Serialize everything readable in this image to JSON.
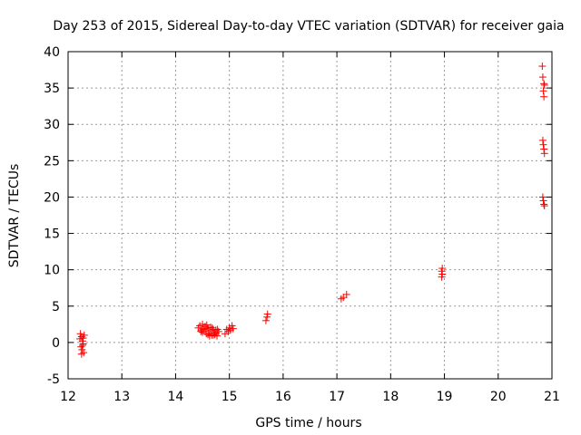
{
  "chart_data": {
    "type": "scatter",
    "title": "Day 253 of 2015, Sidereal Day-to-day VTEC variation (SDTVAR) for receiver gaia",
    "xlabel": "GPS time / hours",
    "ylabel": "SDTVAR / TECUs",
    "xlim": [
      12,
      21
    ],
    "ylim": [
      -5,
      40
    ],
    "x_ticks": [
      12,
      13,
      14,
      15,
      16,
      17,
      18,
      19,
      20,
      21
    ],
    "y_ticks": [
      -5,
      0,
      5,
      10,
      15,
      20,
      25,
      30,
      35,
      40
    ],
    "x_tick_labels": [
      "12",
      "13",
      "14",
      "15",
      "16",
      "17",
      "18",
      "19",
      "20",
      "21"
    ],
    "y_tick_labels": [
      "-5",
      "0",
      "5",
      "10",
      "15",
      "20",
      "25",
      "30",
      "35",
      "40"
    ],
    "grid": true,
    "marker": "+",
    "color": "#ff0000",
    "series": [
      {
        "name": "SDTVAR",
        "points": [
          [
            12.23,
            1.2
          ],
          [
            12.25,
            0.8
          ],
          [
            12.27,
            0.2
          ],
          [
            12.28,
            -0.2
          ],
          [
            12.24,
            -0.6
          ],
          [
            12.26,
            -1.0
          ],
          [
            12.29,
            -1.4
          ],
          [
            12.22,
            0.5
          ],
          [
            12.3,
            1.0
          ],
          [
            12.25,
            -1.6
          ],
          [
            12.27,
            -0.4
          ],
          [
            12.28,
            0.6
          ],
          [
            14.42,
            2.0
          ],
          [
            14.45,
            2.3
          ],
          [
            14.47,
            1.5
          ],
          [
            14.5,
            2.5
          ],
          [
            14.52,
            1.8
          ],
          [
            14.55,
            2.2
          ],
          [
            14.57,
            1.2
          ],
          [
            14.6,
            2.0
          ],
          [
            14.62,
            1.6
          ],
          [
            14.65,
            2.1
          ],
          [
            14.67,
            1.0
          ],
          [
            14.7,
            1.8
          ],
          [
            14.72,
            1.3
          ],
          [
            14.75,
            1.7
          ],
          [
            14.77,
            0.9
          ],
          [
            14.8,
            1.5
          ],
          [
            14.5,
            1.4
          ],
          [
            14.55,
            1.9
          ],
          [
            14.6,
            1.1
          ],
          [
            14.65,
            1.6
          ],
          [
            14.7,
            1.0
          ],
          [
            14.75,
            1.3
          ],
          [
            14.78,
            1.8
          ],
          [
            14.58,
            2.4
          ],
          [
            14.63,
            0.9
          ],
          [
            14.68,
            2.0
          ],
          [
            14.73,
            1.1
          ],
          [
            14.48,
            1.7
          ],
          [
            14.92,
            1.2
          ],
          [
            14.95,
            1.8
          ],
          [
            14.98,
            1.5
          ],
          [
            15.0,
            2.0
          ],
          [
            15.02,
            1.7
          ],
          [
            15.05,
            2.3
          ],
          [
            15.07,
            1.9
          ],
          [
            15.68,
            3.0
          ],
          [
            15.7,
            3.5
          ],
          [
            15.71,
            3.9
          ],
          [
            17.08,
            6.0
          ],
          [
            17.12,
            6.2
          ],
          [
            17.18,
            6.6
          ],
          [
            18.95,
            9.0
          ],
          [
            18.96,
            9.4
          ],
          [
            18.95,
            9.8
          ],
          [
            18.96,
            10.2
          ],
          [
            20.82,
            38.0
          ],
          [
            20.83,
            36.5
          ],
          [
            20.85,
            35.6
          ],
          [
            20.86,
            35.4
          ],
          [
            20.84,
            34.6
          ],
          [
            20.85,
            33.8
          ],
          [
            20.83,
            27.8
          ],
          [
            20.84,
            27.2
          ],
          [
            20.85,
            26.6
          ],
          [
            20.86,
            26.0
          ],
          [
            20.83,
            20.0
          ],
          [
            20.84,
            19.5
          ],
          [
            20.85,
            19.0
          ],
          [
            20.86,
            18.8
          ]
        ]
      }
    ]
  }
}
